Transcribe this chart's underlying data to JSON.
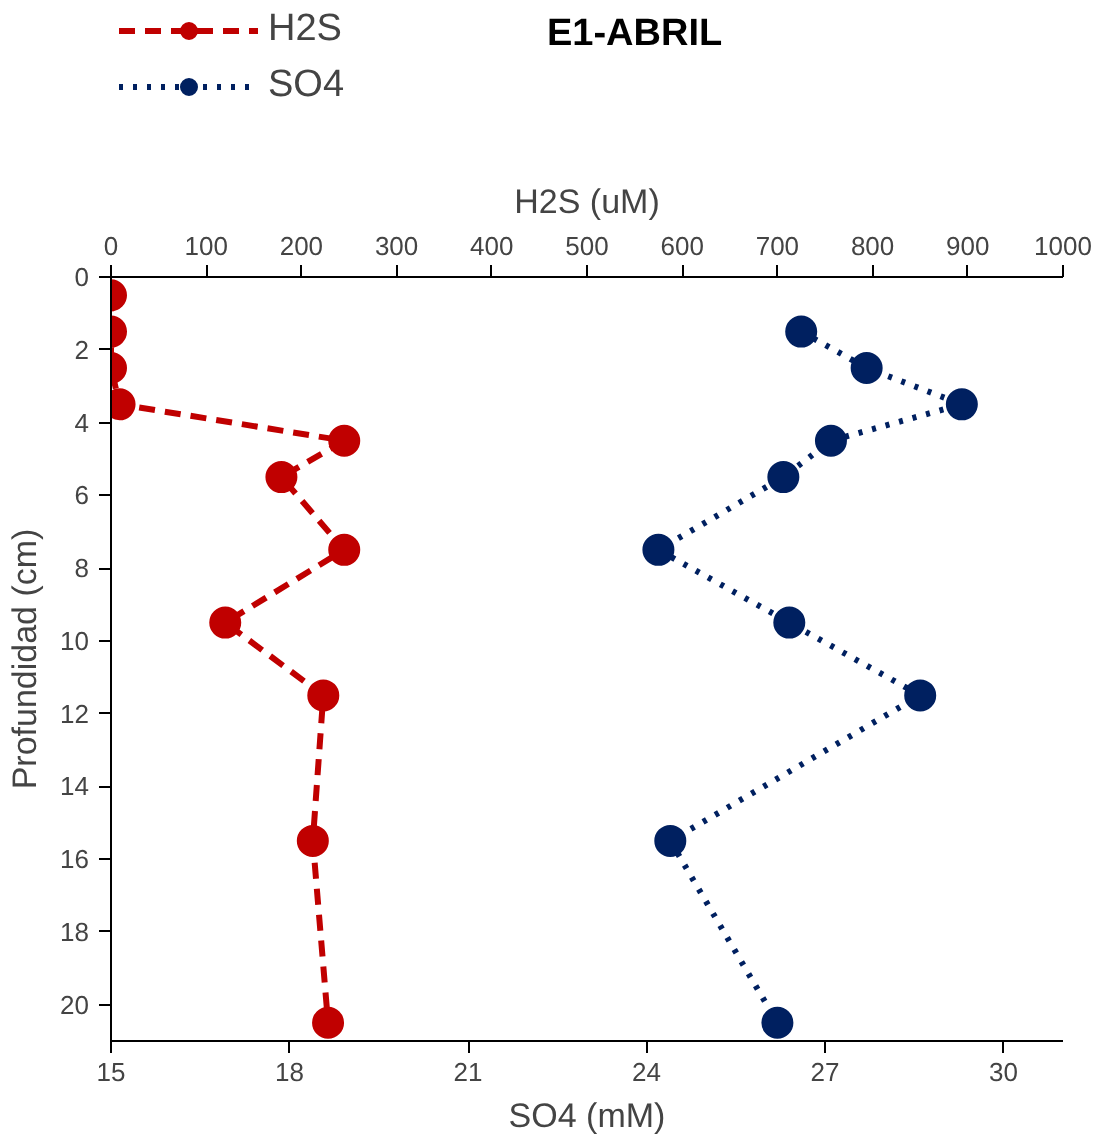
{
  "chart_data": {
    "type": "line",
    "title": "E1-ABRIL",
    "xlabel": "SO4 (mM)",
    "x2label": "H2S (uM)",
    "ylabel": "Profundidad (cm)",
    "xlim": [
      15,
      31
    ],
    "xticks": [
      15,
      18,
      21,
      24,
      27,
      30
    ],
    "x2lim": [
      0,
      1000
    ],
    "x2ticks": [
      0,
      100,
      200,
      300,
      400,
      500,
      600,
      700,
      800,
      900,
      1000
    ],
    "ylim": [
      21,
      0
    ],
    "yticks": [
      0,
      2,
      4,
      6,
      8,
      10,
      12,
      14,
      16,
      18,
      20
    ],
    "grid": false,
    "legend": "top left",
    "marker": "circle",
    "series": [
      {
        "name": "H2S",
        "color": "#c00000",
        "axis": "x2",
        "line_style": "dashed",
        "x": [
          0,
          0,
          0,
          9,
          245,
          179,
          245,
          120,
          223,
          212,
          228
        ],
        "values": [
          0.5,
          1.5,
          2.5,
          3.5,
          4.5,
          5.5,
          7.5,
          9.5,
          11.5,
          15.5,
          20.5
        ]
      },
      {
        "name": "SO4",
        "color": "#002060",
        "line_style": "dotted",
        "x": [
          26.6,
          27.7,
          29.3,
          27.1,
          26.3,
          24.2,
          26.4,
          28.6,
          24.4,
          26.2
        ],
        "values": [
          1.5,
          2.5,
          3.5,
          4.5,
          5.5,
          7.5,
          9.5,
          11.5,
          15.5,
          20.5
        ]
      }
    ]
  }
}
